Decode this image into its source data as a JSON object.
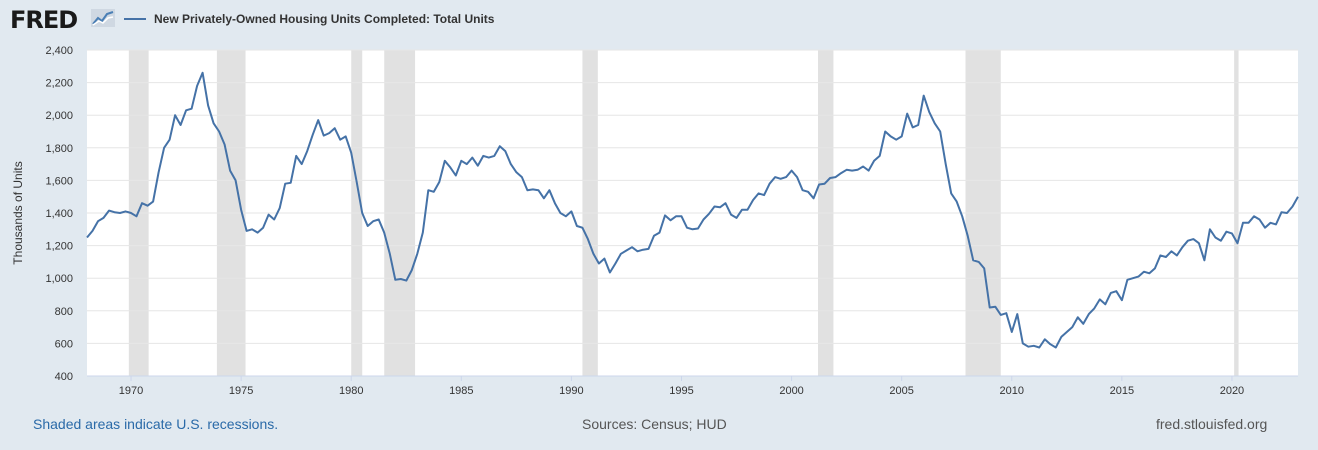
{
  "header": {
    "logo_text": "FRED",
    "legend_label": "New Privately-Owned Housing Units Completed: Total Units"
  },
  "footer": {
    "recession_note": "Shaded areas indicate U.S. recessions.",
    "sources": "Sources: Census; HUD",
    "website": "fred.stlouisfed.org"
  },
  "colors": {
    "background": "#e1e9f0",
    "plot_background": "#ffffff",
    "series_line": "#4572a7",
    "recession_shade": "#e1e1e1",
    "gridline": "#e6e6e6"
  },
  "chart_data": {
    "type": "line",
    "title": "New Privately-Owned Housing Units Completed: Total Units",
    "xlabel": "",
    "ylabel": "Thousands of Units",
    "xlim": [
      1968.0,
      2023.0
    ],
    "ylim": [
      400,
      2400
    ],
    "x_ticks": [
      1970,
      1975,
      1980,
      1985,
      1990,
      1995,
      2000,
      2005,
      2010,
      2015,
      2020
    ],
    "y_ticks": [
      400,
      600,
      800,
      1000,
      1200,
      1400,
      1600,
      1800,
      2000,
      2200,
      2400
    ],
    "y_tick_labels": [
      "400",
      "600",
      "800",
      "1,000",
      "1,200",
      "1,400",
      "1,600",
      "1,800",
      "2,000",
      "2,200",
      "2,400"
    ],
    "grid": true,
    "legend_position": "top-left",
    "recessions": [
      [
        1969.9,
        1970.8
      ],
      [
        1973.9,
        1975.2
      ],
      [
        1980.0,
        1980.5
      ],
      [
        1981.5,
        1982.9
      ],
      [
        1990.5,
        1991.2
      ],
      [
        2001.2,
        2001.9
      ],
      [
        2007.9,
        2009.5
      ],
      [
        2020.1,
        2020.3
      ]
    ],
    "series": [
      {
        "name": "New Privately-Owned Housing Units Completed: Total Units",
        "x": [
          1968.0,
          1968.25,
          1968.5,
          1968.75,
          1969.0,
          1969.25,
          1969.5,
          1969.75,
          1970.0,
          1970.25,
          1970.5,
          1970.75,
          1971.0,
          1971.25,
          1971.5,
          1971.75,
          1972.0,
          1972.25,
          1972.5,
          1972.75,
          1973.0,
          1973.25,
          1973.5,
          1973.75,
          1974.0,
          1974.25,
          1974.5,
          1974.75,
          1975.0,
          1975.25,
          1975.5,
          1975.75,
          1976.0,
          1976.25,
          1976.5,
          1976.75,
          1977.0,
          1977.25,
          1977.5,
          1977.75,
          1978.0,
          1978.25,
          1978.5,
          1978.75,
          1979.0,
          1979.25,
          1979.5,
          1979.75,
          1980.0,
          1980.25,
          1980.5,
          1980.75,
          1981.0,
          1981.25,
          1981.5,
          1981.75,
          1982.0,
          1982.25,
          1982.5,
          1982.75,
          1983.0,
          1983.25,
          1983.5,
          1983.75,
          1984.0,
          1984.25,
          1984.5,
          1984.75,
          1985.0,
          1985.25,
          1985.5,
          1985.75,
          1986.0,
          1986.25,
          1986.5,
          1986.75,
          1987.0,
          1987.25,
          1987.5,
          1987.75,
          1988.0,
          1988.25,
          1988.5,
          1988.75,
          1989.0,
          1989.25,
          1989.5,
          1989.75,
          1990.0,
          1990.25,
          1990.5,
          1990.75,
          1991.0,
          1991.25,
          1991.5,
          1991.75,
          1992.0,
          1992.25,
          1992.5,
          1992.75,
          1993.0,
          1993.25,
          1993.5,
          1993.75,
          1994.0,
          1994.25,
          1994.5,
          1994.75,
          1995.0,
          1995.25,
          1995.5,
          1995.75,
          1996.0,
          1996.25,
          1996.5,
          1996.75,
          1997.0,
          1997.25,
          1997.5,
          1997.75,
          1998.0,
          1998.25,
          1998.5,
          1998.75,
          1999.0,
          1999.25,
          1999.5,
          1999.75,
          2000.0,
          2000.25,
          2000.5,
          2000.75,
          2001.0,
          2001.25,
          2001.5,
          2001.75,
          2002.0,
          2002.25,
          2002.5,
          2002.75,
          2003.0,
          2003.25,
          2003.5,
          2003.75,
          2004.0,
          2004.25,
          2004.5,
          2004.75,
          2005.0,
          2005.25,
          2005.5,
          2005.75,
          2006.0,
          2006.25,
          2006.5,
          2006.75,
          2007.0,
          2007.25,
          2007.5,
          2007.75,
          2008.0,
          2008.25,
          2008.5,
          2008.75,
          2009.0,
          2009.25,
          2009.5,
          2009.75,
          2010.0,
          2010.25,
          2010.5,
          2010.75,
          2011.0,
          2011.25,
          2011.5,
          2011.75,
          2012.0,
          2012.25,
          2012.5,
          2012.75,
          2013.0,
          2013.25,
          2013.5,
          2013.75,
          2014.0,
          2014.25,
          2014.5,
          2014.75,
          2015.0,
          2015.25,
          2015.5,
          2015.75,
          2016.0,
          2016.25,
          2016.5,
          2016.75,
          2017.0,
          2017.25,
          2017.5,
          2017.75,
          2018.0,
          2018.25,
          2018.5,
          2018.75,
          2019.0,
          2019.25,
          2019.5,
          2019.75,
          2020.0,
          2020.25,
          2020.5,
          2020.75,
          2021.0,
          2021.25,
          2021.5,
          2021.75,
          2022.0,
          2022.25,
          2022.5,
          2022.75,
          2023.0
        ],
        "values": [
          1250,
          1290,
          1350,
          1370,
          1415,
          1405,
          1400,
          1410,
          1400,
          1380,
          1460,
          1445,
          1470,
          1650,
          1800,
          1850,
          2000,
          1940,
          2030,
          2040,
          2180,
          2260,
          2060,
          1950,
          1900,
          1820,
          1660,
          1600,
          1420,
          1290,
          1300,
          1280,
          1310,
          1390,
          1360,
          1430,
          1580,
          1585,
          1750,
          1700,
          1780,
          1880,
          1970,
          1875,
          1890,
          1920,
          1850,
          1870,
          1770,
          1590,
          1400,
          1320,
          1350,
          1360,
          1280,
          1150,
          990,
          995,
          985,
          1050,
          1150,
          1280,
          1540,
          1530,
          1590,
          1720,
          1680,
          1630,
          1720,
          1700,
          1740,
          1690,
          1750,
          1740,
          1750,
          1810,
          1780,
          1700,
          1650,
          1620,
          1540,
          1545,
          1540,
          1490,
          1540,
          1460,
          1400,
          1380,
          1410,
          1320,
          1310,
          1240,
          1150,
          1090,
          1120,
          1035,
          1090,
          1150,
          1170,
          1190,
          1165,
          1175,
          1180,
          1260,
          1280,
          1385,
          1355,
          1380,
          1380,
          1310,
          1300,
          1305,
          1360,
          1395,
          1440,
          1435,
          1460,
          1390,
          1370,
          1420,
          1420,
          1480,
          1520,
          1510,
          1580,
          1620,
          1610,
          1620,
          1660,
          1620,
          1540,
          1530,
          1490,
          1575,
          1580,
          1615,
          1620,
          1645,
          1665,
          1660,
          1665,
          1685,
          1660,
          1720,
          1750,
          1900,
          1870,
          1850,
          1870,
          2010,
          1925,
          1940,
          2120,
          2020,
          1950,
          1900,
          1700,
          1520,
          1470,
          1380,
          1260,
          1110,
          1100,
          1060,
          820,
          825,
          775,
          785,
          670,
          780,
          600,
          580,
          585,
          575,
          625,
          595,
          575,
          640,
          670,
          700,
          760,
          720,
          780,
          815,
          870,
          840,
          910,
          920,
          865,
          990,
          1000,
          1010,
          1040,
          1030,
          1060,
          1140,
          1130,
          1165,
          1140,
          1190,
          1230,
          1240,
          1215,
          1110,
          1300,
          1250,
          1230,
          1285,
          1275,
          1215,
          1340,
          1340,
          1380,
          1360,
          1310,
          1340,
          1330,
          1405,
          1400,
          1440,
          1500
        ]
      }
    ]
  }
}
